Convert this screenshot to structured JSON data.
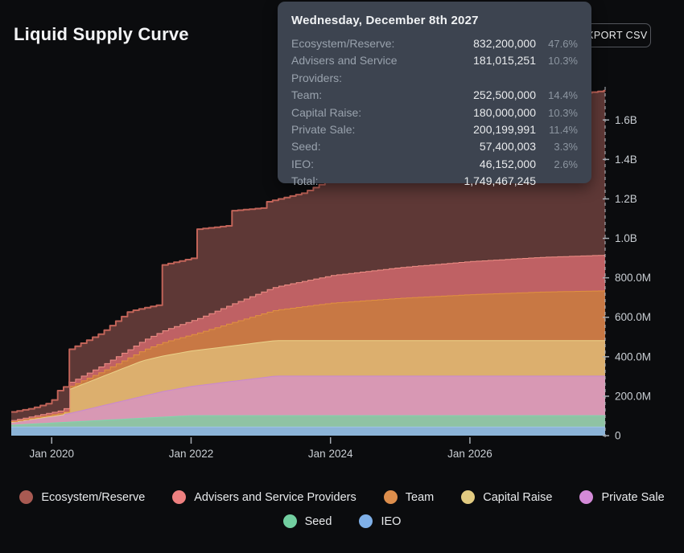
{
  "page": {
    "title": "Liquid Supply Curve",
    "export_button": "EXPORT CSV",
    "background": "#0b0c0e"
  },
  "tooltip": {
    "date": "Wednesday, December 8th 2027",
    "rows": [
      {
        "label": "Ecosystem/Reserve:",
        "value": "832,200,000",
        "pct": "47.6%"
      },
      {
        "label": "Advisers and Service Providers:",
        "value": "181,015,251",
        "pct": "10.3%"
      },
      {
        "label": "Team:",
        "value": "252,500,000",
        "pct": "14.4%"
      },
      {
        "label": "Capital Raise:",
        "value": "180,000,000",
        "pct": "10.3%"
      },
      {
        "label": "Private Sale:",
        "value": "200,199,991",
        "pct": "11.4%"
      },
      {
        "label": "Seed:",
        "value": "57,400,003",
        "pct": "3.3%"
      },
      {
        "label": "IEO:",
        "value": "46,152,000",
        "pct": "2.6%"
      },
      {
        "label": "Total:",
        "value": "1,749,467,245",
        "pct": ""
      }
    ]
  },
  "legend": {
    "split": [
      5,
      2
    ],
    "items": [
      {
        "label": "Ecosystem/Reserve",
        "color": "#a85a52"
      },
      {
        "label": "Advisers and Service Providers",
        "color": "#ee8080"
      },
      {
        "label": "Team",
        "color": "#dd8e4c"
      },
      {
        "label": "Capital Raise",
        "color": "#e2cb81"
      },
      {
        "label": "Private Sale",
        "color": "#d48ad8"
      },
      {
        "label": "Seed",
        "color": "#72cfa0"
      },
      {
        "label": "IEO",
        "color": "#7fb0e8"
      }
    ]
  },
  "chart_data": {
    "type": "area",
    "stacked": true,
    "title": "Liquid Supply Curve",
    "unit": "millions of tokens",
    "x_domain": [
      2019.42,
      2027.94
    ],
    "ylim": [
      0,
      1760
    ],
    "grid": false,
    "legend_position": "bottom",
    "hover_date": "2027-12-08",
    "y_ticks": [
      {
        "label": "1.6B",
        "value": 1600
      },
      {
        "label": "1.4B",
        "value": 1400
      },
      {
        "label": "1.2B",
        "value": 1200
      },
      {
        "label": "1.0B",
        "value": 1000
      },
      {
        "label": "800.0M",
        "value": 800
      },
      {
        "label": "600.0M",
        "value": 600
      },
      {
        "label": "400.0M",
        "value": 400
      },
      {
        "label": "200.0M",
        "value": 200
      },
      {
        "label": "0",
        "value": 0
      }
    ],
    "x_ticks": [
      {
        "label": "Jan 2020",
        "t": 2020.0
      },
      {
        "label": "Jan 2022",
        "t": 2022.0
      },
      {
        "label": "Jan 2024",
        "t": 2024.0
      },
      {
        "label": "Jan 2026",
        "t": 2026.0
      }
    ],
    "crosshair": {
      "t": 2027.94,
      "color": "#b9bec4"
    },
    "axis_color": "#a7adb4",
    "tick_label_color": "#c9ced3",
    "series": [
      {
        "name": "IEO",
        "interp": "linear",
        "fill": "#8cb4d8",
        "stroke": "#9fc4e8",
        "final_value_tokens": 46152000,
        "anchors": [
          [
            2019.42,
            46.152
          ],
          [
            2027.94,
            46.152
          ]
        ]
      },
      {
        "name": "Seed",
        "interp": "linear",
        "fill": "#8fc3a4",
        "stroke": "#7fd6ac",
        "final_value_tokens": 57400003,
        "anchors": [
          [
            2019.42,
            9
          ],
          [
            2022.0,
            57.4
          ],
          [
            2027.94,
            57.4
          ]
        ]
      },
      {
        "name": "Private Sale",
        "interp": "linear",
        "fill": "#d898b4",
        "stroke": "#c887d2",
        "final_value_tokens": 200199991,
        "anchors": [
          [
            2019.42,
            14
          ],
          [
            2020.2,
            40
          ],
          [
            2021.6,
            130
          ],
          [
            2023.2,
            200.2
          ],
          [
            2027.94,
            200.2
          ]
        ]
      },
      {
        "name": "Capital Raise",
        "interp": "linear",
        "fill": "#dcaf6e",
        "stroke": "#ead28a",
        "final_value_tokens": 180000000,
        "anchors": [
          [
            2019.42,
            0
          ],
          [
            2020.18,
            0
          ],
          [
            2020.22,
            120
          ],
          [
            2021.3,
            180
          ],
          [
            2027.94,
            180
          ]
        ]
      },
      {
        "name": "Team",
        "interp": "step",
        "fill": "#c87844",
        "stroke": "#e0913f",
        "final_value_tokens": 252500000,
        "anchors": [
          [
            2019.42,
            4
          ],
          [
            2020.1,
            10
          ],
          [
            2020.21,
            15
          ],
          [
            2020.7,
            28
          ],
          [
            2021.1,
            45
          ],
          [
            2021.6,
            70
          ],
          [
            2022.05,
            85
          ],
          [
            2022.6,
            120
          ],
          [
            2023.1,
            150
          ],
          [
            2024,
            190
          ],
          [
            2025,
            215
          ],
          [
            2026,
            233
          ],
          [
            2027,
            246
          ],
          [
            2027.94,
            252.5
          ]
        ]
      },
      {
        "name": "Advisers and Service Providers",
        "interp": "step",
        "fill": "#bf6164",
        "stroke": "#f08f86",
        "final_value_tokens": 181015251,
        "anchors": [
          [
            2019.42,
            6
          ],
          [
            2020.1,
            13
          ],
          [
            2020.21,
            20
          ],
          [
            2020.7,
            30
          ],
          [
            2021.1,
            42
          ],
          [
            2021.6,
            60
          ],
          [
            2022.05,
            72
          ],
          [
            2022.6,
            95
          ],
          [
            2023.1,
            115
          ],
          [
            2024,
            140
          ],
          [
            2025,
            156
          ],
          [
            2026,
            168
          ],
          [
            2027,
            176
          ],
          [
            2027.94,
            181.015
          ]
        ]
      },
      {
        "name": "Ecosystem/Reserve",
        "interp": "step",
        "fill": "#5e3836",
        "stroke": "#c26459",
        "final_value_tokens": 832200000,
        "anchors": "derived_from_total"
      }
    ],
    "total_anchors": [
      [
        2019.42,
        120
      ],
      [
        2019.7,
        138
      ],
      [
        2019.95,
        165
      ],
      [
        2020.05,
        195
      ],
      [
        2020.1,
        240
      ],
      [
        2020.18,
        248
      ],
      [
        2020.21,
        430
      ],
      [
        2020.7,
        520
      ],
      [
        2021.1,
        630
      ],
      [
        2021.55,
        665
      ],
      [
        2021.58,
        865
      ],
      [
        2022.02,
        900
      ],
      [
        2022.05,
        1045
      ],
      [
        2022.55,
        1065
      ],
      [
        2022.58,
        1140
      ],
      [
        2023.05,
        1155
      ],
      [
        2023.08,
        1185
      ],
      [
        2023.6,
        1230
      ],
      [
        2024.5,
        1390
      ],
      [
        2025.5,
        1530
      ],
      [
        2026.5,
        1650
      ],
      [
        2027.5,
        1730
      ],
      [
        2027.94,
        1749.467
      ]
    ],
    "total_tokens": 1749467245
  }
}
